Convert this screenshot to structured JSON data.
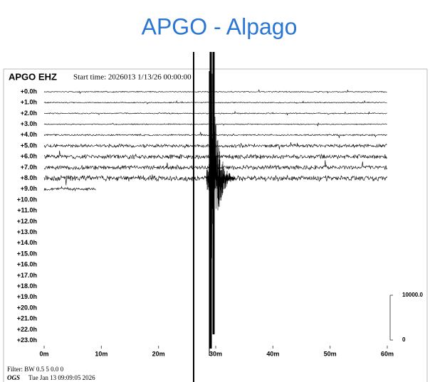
{
  "title": "APGO - Alpago",
  "plot": {
    "station": "APGO EHZ",
    "start_time": "Start time: 2026013  1/13/26 00:00:00",
    "rows": [
      "+0.0h",
      "+1.0h",
      "+2.0h",
      "+3.0h",
      "+4.0h",
      "+5.0h",
      "+6.0h",
      "+7.0h",
      "+8.0h",
      "+9.0h",
      "+10.0h",
      "+11.0h",
      "+12.0h",
      "+13.0h",
      "+14.0h",
      "+15.0h",
      "+16.0h",
      "+17.0h",
      "+18.0h",
      "+19.0h",
      "+20.0h",
      "+21.0h",
      "+22.0h",
      "+23.0h"
    ],
    "x_ticks": [
      "0m",
      "10m",
      "20m",
      "30m",
      "40m",
      "50m",
      "60m"
    ],
    "scale_top": "10000.0",
    "scale_bottom": "0"
  },
  "footer": {
    "filter": "Filter: BW 0.5 5 0.0 0",
    "org": "OGS",
    "date": "Tue Jan 13 09:09:05 2026"
  }
}
